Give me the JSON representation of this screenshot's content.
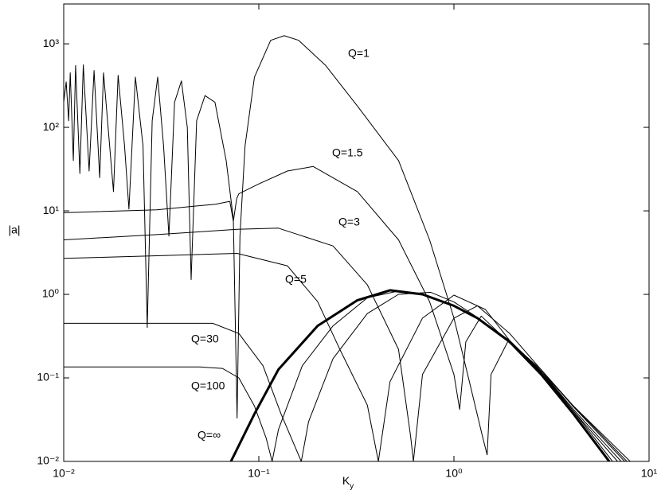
{
  "chart_data": {
    "type": "line",
    "log_x": true,
    "log_y": true,
    "x_label": "K",
    "x_label_subscript": "y",
    "y_label": "|a|",
    "xlim": [
      0.01,
      10
    ],
    "ylim": [
      0.01,
      3000
    ],
    "xticks": [
      {
        "value": 0.01,
        "label": "10⁻²"
      },
      {
        "value": 0.1,
        "label": "10⁻¹"
      },
      {
        "value": 1,
        "label": "10⁰"
      },
      {
        "value": 10,
        "label": "10¹"
      }
    ],
    "yticks": [
      {
        "value": 0.01,
        "label": "10⁻²"
      },
      {
        "value": 0.1,
        "label": "10⁻¹"
      },
      {
        "value": 1,
        "label": "10⁰"
      },
      {
        "value": 10,
        "label": "10¹"
      },
      {
        "value": 100,
        "label": "10²"
      },
      {
        "value": 1000,
        "label": "10³"
      }
    ],
    "series": [
      {
        "name": "Q=1",
        "color": "#000000",
        "stroke_width": 1,
        "x": [
          0.01,
          0.0103,
          0.0106,
          0.0108,
          0.0112,
          0.0115,
          0.0121,
          0.0126,
          0.0135,
          0.0143,
          0.0153,
          0.016,
          0.018,
          0.019,
          0.0205,
          0.0216,
          0.0233,
          0.0255,
          0.0268,
          0.0284,
          0.0303,
          0.0325,
          0.0346,
          0.037,
          0.0401,
          0.043,
          0.045,
          0.048,
          0.053,
          0.0596,
          0.068,
          0.074,
          0.0774,
          0.08,
          0.085,
          0.095,
          0.115,
          0.135,
          0.16,
          0.22,
          0.32,
          0.52,
          0.75,
          1.0,
          1.2,
          1.4,
          1.48,
          1.55,
          1.9,
          2.8,
          4.1,
          7.7
        ],
        "values": [
          200,
          350,
          120,
          450,
          40,
          550,
          28,
          560,
          30,
          480,
          25,
          450,
          17,
          420,
          60,
          10.5,
          400,
          60,
          0.4,
          120,
          400,
          60,
          5,
          200,
          360,
          100,
          1.5,
          120,
          240,
          200,
          40,
          8,
          0.033,
          5,
          60,
          400,
          1100,
          1250,
          1100,
          550,
          180,
          40,
          4.5,
          0.52,
          0.09,
          0.02,
          0.012,
          0.11,
          0.28,
          0.125,
          0.046,
          0.01
        ]
      },
      {
        "name": "Q=1.5",
        "color": "#000000",
        "stroke_width": 1,
        "x": [
          0.01,
          0.03,
          0.06,
          0.071,
          0.074,
          0.077,
          0.079,
          0.1,
          0.14,
          0.19,
          0.32,
          0.52,
          0.75,
          1.0,
          1.07,
          1.15,
          1.38,
          1.9,
          2.9,
          4.1,
          8.0
        ],
        "values": [
          9.5,
          10.3,
          12,
          13,
          7.5,
          14,
          16,
          21,
          30,
          34,
          17,
          4.5,
          0.82,
          0.11,
          0.042,
          0.27,
          0.55,
          0.27,
          0.11,
          0.046,
          0.01
        ]
      },
      {
        "name": "Q=3",
        "color": "#000000",
        "stroke_width": 1,
        "x": [
          0.01,
          0.03,
          0.0774,
          0.126,
          0.24,
          0.36,
          0.52,
          0.6,
          0.62,
          0.69,
          1.0,
          1.32,
          1.93,
          2.8,
          4.1,
          7.5
        ],
        "values": [
          4.5,
          5.2,
          6.0,
          6.2,
          3.8,
          1.3,
          0.22,
          0.02,
          0.01,
          0.11,
          0.52,
          0.73,
          0.34,
          0.125,
          0.045,
          0.01
        ]
      },
      {
        "name": "Q=5",
        "color": "#000000",
        "stroke_width": 1,
        "x": [
          0.01,
          0.03,
          0.0774,
          0.14,
          0.2,
          0.26,
          0.36,
          0.41,
          0.47,
          0.69,
          1.0,
          1.45,
          1.93,
          2.8,
          4.1,
          7.2
        ],
        "values": [
          2.7,
          2.9,
          3.1,
          2.2,
          0.82,
          0.22,
          0.047,
          0.01,
          0.09,
          0.52,
          0.98,
          0.66,
          0.28,
          0.12,
          0.042,
          0.01
        ]
      },
      {
        "name": "Q=30",
        "color": "#000000",
        "stroke_width": 1,
        "x": [
          0.01,
          0.03,
          0.058,
          0.079,
          0.105,
          0.13,
          0.165,
          0.18,
          0.24,
          0.36,
          0.52,
          0.76,
          1.0,
          1.32,
          1.93,
          2.8,
          4.1,
          6.9
        ],
        "values": [
          0.45,
          0.45,
          0.45,
          0.34,
          0.14,
          0.037,
          0.01,
          0.03,
          0.17,
          0.59,
          1.0,
          1.06,
          0.81,
          0.53,
          0.28,
          0.12,
          0.04,
          0.01
        ]
      },
      {
        "name": "Q=100",
        "color": "#000000",
        "stroke_width": 1,
        "x": [
          0.01,
          0.05,
          0.065,
          0.079,
          0.095,
          0.109,
          0.117,
          0.126,
          0.167,
          0.24,
          0.36,
          0.52,
          0.69,
          1.0,
          1.32,
          1.93,
          2.8,
          4.1,
          6.5
        ],
        "values": [
          0.135,
          0.135,
          0.13,
          0.1,
          0.046,
          0.019,
          0.01,
          0.024,
          0.14,
          0.42,
          0.91,
          1.1,
          1.0,
          0.73,
          0.52,
          0.27,
          0.115,
          0.04,
          0.01
        ]
      },
      {
        "name": "Q=∞",
        "color": "#000000",
        "stroke_width": 3,
        "x": [
          0.072,
          0.095,
          0.126,
          0.2,
          0.32,
          0.47,
          0.69,
          1.0,
          1.32,
          1.93,
          2.8,
          4.1,
          6.25
        ],
        "values": [
          0.01,
          0.037,
          0.126,
          0.42,
          0.85,
          1.12,
          1.0,
          0.73,
          0.52,
          0.27,
          0.11,
          0.037,
          0.01
        ]
      }
    ]
  }
}
